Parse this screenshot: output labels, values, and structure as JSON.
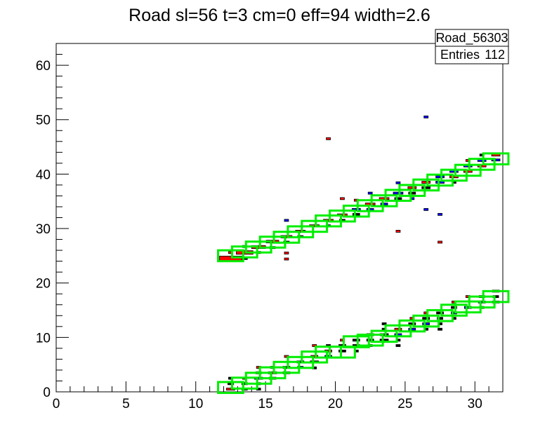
{
  "chart_data": {
    "type": "heatmap",
    "title": "Road sl=56 t=3 cm=0 eff=94 width=2.6",
    "xlabel": "",
    "ylabel": "",
    "xlim": [
      0,
      32
    ],
    "ylim": [
      0,
      64
    ],
    "x_ticks": [
      "0",
      "5",
      "10",
      "15",
      "20",
      "25",
      "30"
    ],
    "y_ticks": [
      "0",
      "10",
      "20",
      "30",
      "40",
      "50",
      "60"
    ],
    "stats_box": {
      "name": "Road_56303",
      "entries_label": "Entries",
      "entries_value": "112"
    },
    "colors": {
      "road_box": "#00ee00",
      "hit_red": "#ff0000",
      "hit_blue": "#0000ff",
      "hit_black": "#000000"
    },
    "road_boxes": [
      [
        12.5,
        25
      ],
      [
        13.5,
        25.7
      ],
      [
        14.5,
        26.6
      ],
      [
        15.5,
        27.5
      ],
      [
        16.5,
        28.4
      ],
      [
        17.5,
        29.4
      ],
      [
        18.5,
        30.4
      ],
      [
        19.5,
        31.4
      ],
      [
        20.5,
        32.3
      ],
      [
        21.5,
        33.2
      ],
      [
        22.5,
        34.2
      ],
      [
        23.5,
        35.1
      ],
      [
        24.5,
        36.1
      ],
      [
        25.5,
        37.0
      ],
      [
        26.5,
        38.0
      ],
      [
        27.5,
        38.9
      ],
      [
        28.5,
        39.8
      ],
      [
        29.5,
        40.7
      ],
      [
        30.5,
        41.8
      ],
      [
        31.5,
        42.8
      ],
      [
        12.5,
        0.8
      ],
      [
        13.5,
        1.6
      ],
      [
        14.5,
        2.5
      ],
      [
        15.5,
        3.5
      ],
      [
        16.5,
        4.5
      ],
      [
        17.5,
        5.4
      ],
      [
        18.5,
        6.4
      ],
      [
        19.5,
        7.3
      ],
      [
        20.5,
        7.3
      ],
      [
        21.5,
        9.2
      ],
      [
        22.5,
        9.5
      ],
      [
        23.5,
        10.2
      ],
      [
        24.5,
        11.2
      ],
      [
        25.5,
        12.1
      ],
      [
        26.5,
        13.0
      ],
      [
        27.5,
        14.0
      ],
      [
        28.5,
        15.0
      ],
      [
        29.5,
        15.6
      ],
      [
        30.5,
        16.5
      ],
      [
        31.5,
        17.5
      ]
    ],
    "hits": [
      {
        "x": 12.5,
        "y": 24.5,
        "c": "red",
        "w": 1.6
      },
      {
        "x": 13.5,
        "y": 25.6,
        "c": "red",
        "w": 1.2
      },
      {
        "x": 13.5,
        "y": 24.5,
        "c": "black",
        "w": 0.4
      },
      {
        "x": 12.5,
        "y": 25.6,
        "c": "red",
        "w": 0.3
      },
      {
        "x": 13.5,
        "y": 26.7,
        "c": "red",
        "w": 0.3
      },
      {
        "x": 14.5,
        "y": 26.6,
        "c": "red",
        "w": 1.0
      },
      {
        "x": 14.5,
        "y": 25.6,
        "c": "red",
        "w": 0.3
      },
      {
        "x": 15.5,
        "y": 27.6,
        "c": "red",
        "w": 0.9
      },
      {
        "x": 15.5,
        "y": 26.5,
        "c": "black",
        "w": 0.4
      },
      {
        "x": 16.5,
        "y": 28.5,
        "c": "red",
        "w": 0.8
      },
      {
        "x": 16.5,
        "y": 27.5,
        "c": "black",
        "w": 0.4
      },
      {
        "x": 16.5,
        "y": 25.5,
        "c": "red",
        "w": 0.3
      },
      {
        "x": 16.5,
        "y": 24.4,
        "c": "red",
        "w": 0.3
      },
      {
        "x": 16.5,
        "y": 31.5,
        "c": "blue",
        "w": 0.3
      },
      {
        "x": 17.5,
        "y": 29.5,
        "c": "red",
        "w": 0.7
      },
      {
        "x": 17.5,
        "y": 28.5,
        "c": "black",
        "w": 0.4
      },
      {
        "x": 18.5,
        "y": 30.5,
        "c": "red",
        "w": 0.7
      },
      {
        "x": 19.5,
        "y": 31.5,
        "c": "red",
        "w": 0.7
      },
      {
        "x": 19.5,
        "y": 30.5,
        "c": "blue",
        "w": 0.3
      },
      {
        "x": 19.5,
        "y": 46.5,
        "c": "red",
        "w": 0.3
      },
      {
        "x": 20.5,
        "y": 32.5,
        "c": "red",
        "w": 0.7
      },
      {
        "x": 20.5,
        "y": 31.5,
        "c": "black",
        "w": 0.4
      },
      {
        "x": 20.5,
        "y": 35.5,
        "c": "red",
        "w": 0.3
      },
      {
        "x": 21.5,
        "y": 33.5,
        "c": "blue",
        "w": 0.6
      },
      {
        "x": 21.5,
        "y": 32.6,
        "c": "black",
        "w": 0.5
      },
      {
        "x": 21.5,
        "y": 35.2,
        "c": "red",
        "w": 0.3
      },
      {
        "x": 22.5,
        "y": 34.5,
        "c": "red",
        "w": 0.7
      },
      {
        "x": 22.5,
        "y": 33.5,
        "c": "blue",
        "w": 0.5
      },
      {
        "x": 22.5,
        "y": 36.5,
        "c": "blue",
        "w": 0.3
      },
      {
        "x": 23.5,
        "y": 35.5,
        "c": "red",
        "w": 0.7
      },
      {
        "x": 23.5,
        "y": 34.5,
        "c": "blue",
        "w": 0.5
      },
      {
        "x": 24.5,
        "y": 36.5,
        "c": "blue",
        "w": 0.7
      },
      {
        "x": 24.5,
        "y": 35.5,
        "c": "black",
        "w": 0.5
      },
      {
        "x": 24.5,
        "y": 38.4,
        "c": "blue",
        "w": 0.3
      },
      {
        "x": 24.5,
        "y": 29.5,
        "c": "red",
        "w": 0.3
      },
      {
        "x": 25.5,
        "y": 37.5,
        "c": "red",
        "w": 0.6
      },
      {
        "x": 25.5,
        "y": 36.5,
        "c": "black",
        "w": 0.5
      },
      {
        "x": 25.5,
        "y": 35.5,
        "c": "blue",
        "w": 0.3
      },
      {
        "x": 26.5,
        "y": 38.5,
        "c": "red",
        "w": 0.6
      },
      {
        "x": 26.5,
        "y": 37.5,
        "c": "black",
        "w": 0.6
      },
      {
        "x": 26.5,
        "y": 50.5,
        "c": "blue",
        "w": 0.3
      },
      {
        "x": 26.5,
        "y": 33.5,
        "c": "blue",
        "w": 0.3
      },
      {
        "x": 27.5,
        "y": 39.5,
        "c": "blue",
        "w": 0.6
      },
      {
        "x": 27.5,
        "y": 38.5,
        "c": "blue",
        "w": 0.6
      },
      {
        "x": 27.5,
        "y": 32.6,
        "c": "blue",
        "w": 0.3
      },
      {
        "x": 27.5,
        "y": 27.5,
        "c": "red",
        "w": 0.3
      },
      {
        "x": 28.5,
        "y": 40.5,
        "c": "blue",
        "w": 0.6
      },
      {
        "x": 28.5,
        "y": 39.5,
        "c": "red",
        "w": 0.6
      },
      {
        "x": 28.5,
        "y": 38.5,
        "c": "black",
        "w": 0.3
      },
      {
        "x": 29.5,
        "y": 41.5,
        "c": "blue",
        "w": 0.6
      },
      {
        "x": 29.5,
        "y": 40.5,
        "c": "red",
        "w": 0.6
      },
      {
        "x": 29.5,
        "y": 42.5,
        "c": "red",
        "w": 0.3
      },
      {
        "x": 30.5,
        "y": 42.5,
        "c": "blue",
        "w": 0.6
      },
      {
        "x": 30.5,
        "y": 41.5,
        "c": "red",
        "w": 0.6
      },
      {
        "x": 30.5,
        "y": 43.5,
        "c": "black",
        "w": 0.3
      },
      {
        "x": 31.5,
        "y": 43.5,
        "c": "red",
        "w": 0.6
      },
      {
        "x": 31.5,
        "y": 42.6,
        "c": "blue",
        "w": 0.6
      },
      {
        "x": 12.5,
        "y": 0.5,
        "c": "red",
        "w": 0.6
      },
      {
        "x": 12.5,
        "y": 1.5,
        "c": "black",
        "w": 0.4
      },
      {
        "x": 12.5,
        "y": 2.5,
        "c": "black",
        "w": 0.3
      },
      {
        "x": 13.5,
        "y": 0.5,
        "c": "black",
        "w": 0.4
      },
      {
        "x": 13.5,
        "y": 1.5,
        "c": "black",
        "w": 0.4
      },
      {
        "x": 13.5,
        "y": 2.5,
        "c": "red",
        "w": 0.3
      },
      {
        "x": 14.5,
        "y": 2.5,
        "c": "blue",
        "w": 0.6
      },
      {
        "x": 14.5,
        "y": 3.5,
        "c": "black",
        "w": 0.4
      },
      {
        "x": 14.5,
        "y": 4.5,
        "c": "red",
        "w": 0.3
      },
      {
        "x": 14.5,
        "y": 1.5,
        "c": "red",
        "w": 0.3
      },
      {
        "x": 14.5,
        "y": 0.5,
        "c": "black",
        "w": 0.3
      },
      {
        "x": 15.5,
        "y": 3.5,
        "c": "red",
        "w": 0.6
      },
      {
        "x": 15.5,
        "y": 2.5,
        "c": "black",
        "w": 0.5
      },
      {
        "x": 15.5,
        "y": 4.5,
        "c": "red",
        "w": 0.3
      },
      {
        "x": 16.5,
        "y": 4.5,
        "c": "black",
        "w": 0.5
      },
      {
        "x": 16.5,
        "y": 3.5,
        "c": "black",
        "w": 0.5
      },
      {
        "x": 16.5,
        "y": 6.5,
        "c": "red",
        "w": 0.3
      },
      {
        "x": 17.5,
        "y": 5.5,
        "c": "black",
        "w": 0.5
      },
      {
        "x": 17.5,
        "y": 4.5,
        "c": "blue",
        "w": 0.4
      },
      {
        "x": 18.5,
        "y": 6.5,
        "c": "red",
        "w": 0.5
      },
      {
        "x": 18.5,
        "y": 5.5,
        "c": "black",
        "w": 0.6
      },
      {
        "x": 18.5,
        "y": 4.4,
        "c": "black",
        "w": 0.3
      },
      {
        "x": 18.5,
        "y": 8.5,
        "c": "red",
        "w": 0.3
      },
      {
        "x": 19.5,
        "y": 7.5,
        "c": "red",
        "w": 0.5
      },
      {
        "x": 19.5,
        "y": 6.5,
        "c": "blue",
        "w": 0.5
      },
      {
        "x": 19.5,
        "y": 8.5,
        "c": "black",
        "w": 0.3
      },
      {
        "x": 20.5,
        "y": 8.5,
        "c": "black",
        "w": 0.5
      },
      {
        "x": 20.5,
        "y": 7.5,
        "c": "black",
        "w": 0.5
      },
      {
        "x": 20.5,
        "y": 9.5,
        "c": "red",
        "w": 0.3
      },
      {
        "x": 21.5,
        "y": 9.5,
        "c": "black",
        "w": 0.5
      },
      {
        "x": 21.5,
        "y": 8.5,
        "c": "black",
        "w": 0.5
      },
      {
        "x": 21.5,
        "y": 7.5,
        "c": "black",
        "w": 0.3
      },
      {
        "x": 22.5,
        "y": 10.5,
        "c": "blue",
        "w": 0.5
      },
      {
        "x": 22.5,
        "y": 9.5,
        "c": "black",
        "w": 0.5
      },
      {
        "x": 22.5,
        "y": 8.5,
        "c": "red",
        "w": 0.3
      },
      {
        "x": 23.5,
        "y": 10.5,
        "c": "black",
        "w": 0.6
      },
      {
        "x": 23.5,
        "y": 9.5,
        "c": "black",
        "w": 0.6
      },
      {
        "x": 23.5,
        "y": 11.5,
        "c": "black",
        "w": 0.3
      },
      {
        "x": 23.5,
        "y": 12.5,
        "c": "black",
        "w": 0.3
      },
      {
        "x": 24.5,
        "y": 11.5,
        "c": "red",
        "w": 0.5
      },
      {
        "x": 24.5,
        "y": 10.5,
        "c": "blue",
        "w": 0.5
      },
      {
        "x": 24.5,
        "y": 8.5,
        "c": "black",
        "w": 0.3
      },
      {
        "x": 24.5,
        "y": 9.5,
        "c": "black",
        "w": 0.3
      },
      {
        "x": 25.5,
        "y": 12.5,
        "c": "black",
        "w": 0.5
      },
      {
        "x": 25.5,
        "y": 11.5,
        "c": "blue",
        "w": 0.5
      },
      {
        "x": 25.5,
        "y": 13.5,
        "c": "red",
        "w": 0.3
      },
      {
        "x": 26.5,
        "y": 13.5,
        "c": "black",
        "w": 0.5
      },
      {
        "x": 26.5,
        "y": 12.5,
        "c": "blue",
        "w": 0.5
      },
      {
        "x": 26.5,
        "y": 11.5,
        "c": "black",
        "w": 0.3
      },
      {
        "x": 26.5,
        "y": 14.5,
        "c": "red",
        "w": 0.3
      },
      {
        "x": 27.5,
        "y": 14.5,
        "c": "black",
        "w": 0.5
      },
      {
        "x": 27.5,
        "y": 13.5,
        "c": "black",
        "w": 0.4
      },
      {
        "x": 27.5,
        "y": 12.5,
        "c": "black",
        "w": 0.3
      },
      {
        "x": 27.5,
        "y": 11.5,
        "c": "black",
        "w": 0.3
      },
      {
        "x": 28.5,
        "y": 15.5,
        "c": "black",
        "w": 0.4
      },
      {
        "x": 28.5,
        "y": 14.5,
        "c": "blue",
        "w": 0.4
      },
      {
        "x": 28.5,
        "y": 13.5,
        "c": "black",
        "w": 0.3
      },
      {
        "x": 28.5,
        "y": 16.5,
        "c": "red",
        "w": 0.3
      },
      {
        "x": 29.5,
        "y": 15.5,
        "c": "blue",
        "w": 0.5
      },
      {
        "x": 29.5,
        "y": 17.5,
        "c": "red",
        "w": 0.3
      },
      {
        "x": 30.5,
        "y": 17.5,
        "c": "black",
        "w": 0.4
      },
      {
        "x": 30.5,
        "y": 16.5,
        "c": "blue",
        "w": 0.5
      },
      {
        "x": 30.5,
        "y": 15.5,
        "c": "black",
        "w": 0.3
      },
      {
        "x": 31.5,
        "y": 18.5,
        "c": "red",
        "w": 0.5
      },
      {
        "x": 31.5,
        "y": 17.5,
        "c": "black",
        "w": 0.4
      },
      {
        "x": 31.5,
        "y": 16.5,
        "c": "black",
        "w": 0.5
      }
    ]
  }
}
